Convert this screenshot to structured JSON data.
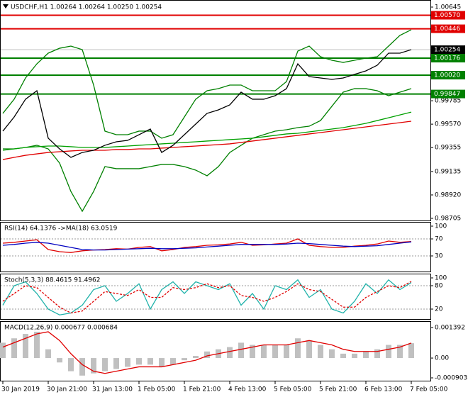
{
  "chart_data": [
    {
      "type": "line",
      "title": "USDCHF,H1  1.00264 1.00264 1.00250 1.00254",
      "categories": [
        "30 Jan 2019",
        null,
        null,
        null,
        "30 Jan 21:00",
        null,
        null,
        null,
        "31 Jan 13:00",
        null,
        null,
        null,
        "1 Feb 05:00",
        null,
        null,
        null,
        "1 Feb 21:00",
        null,
        null,
        null,
        "4 Feb 13:00",
        null,
        null,
        null,
        "5 Feb 05:00",
        null,
        null,
        null,
        "5 Feb 21:00",
        null,
        null,
        null,
        "6 Feb 13:00",
        null,
        null,
        null,
        "7 Feb 05:00"
      ],
      "ylim": [
        0.98705,
        1.00645
      ],
      "yticks": [
        1.00645,
        0.99785,
        {
          "value": 0.9957,
          "label": "0.99570"
        },
        0.99355,
        0.99135,
        {
          "value": 0.9892,
          "label": "0.98920"
        },
        0.98705
      ],
      "last_price": 1.00254,
      "levels": [
        {
          "value": 1.0057,
          "label": "1.00570",
          "color": "#e00000"
        },
        {
          "value": 1.00446,
          "label": "1.00446",
          "color": "#e00000"
        },
        {
          "value": 1.00176,
          "label": "1.00176",
          "color": "#008000"
        },
        {
          "value": 1.0002,
          "label": "1.00020",
          "color": "#008000"
        },
        {
          "value": 0.99847,
          "label": "0.99847",
          "color": "#008000"
        }
      ],
      "series": [
        {
          "color": "#008000",
          "values": [
            0.99669,
            0.99799,
            0.99994,
            1.00124,
            1.00222,
            1.00267,
            1.00287,
            1.00254,
            0.99929,
            0.99506,
            0.99473,
            0.99473,
            0.99506,
            0.99506,
            0.99441,
            0.99473,
            0.99636,
            0.99799,
            0.99877,
            0.99896,
            0.99929,
            0.99929,
            0.99877,
            0.99877,
            0.99877,
            0.99961,
            1.00241,
            1.00287,
            1.00189,
            1.00157,
            1.00137,
            1.00157,
            1.00176,
            1.00189,
            1.00287,
            1.00385,
            1.00437
          ]
        },
        {
          "color": "#008000",
          "values": [
            0.99343,
            0.99343,
            0.99356,
            0.99376,
            0.99343,
            0.99213,
            0.98952,
            0.9877,
            0.98952,
            0.9918,
            0.99161,
            0.99161,
            0.99161,
            0.9918,
            0.992,
            0.992,
            0.9918,
            0.99148,
            0.99096,
            0.9918,
            0.9931,
            0.99376,
            0.99441,
            0.99473,
            0.99506,
            0.99519,
            0.99538,
            0.99551,
            0.99603,
            0.99734,
            0.99864,
            0.99896,
            0.99896,
            0.99877,
            0.99831,
            0.99864,
            0.99896
          ]
        },
        {
          "color": "#00a000",
          "values": [
            0.9933,
            0.99343,
            0.99356,
            0.99363,
            0.99369,
            0.99369,
            0.99363,
            0.99356,
            0.99356,
            0.99356,
            0.99363,
            0.99369,
            0.99376,
            0.99382,
            0.99389,
            0.99395,
            0.99402,
            0.99408,
            0.99415,
            0.99421,
            0.99428,
            0.99434,
            0.99441,
            0.99454,
            0.99467,
            0.9948,
            0.99486,
            0.99499,
            0.99512,
            0.99525,
            0.99538,
            0.99558,
            0.99577,
            0.99603,
            0.99629,
            0.99655,
            0.99681
          ]
        },
        {
          "color": "#e00000",
          "values": [
            0.99245,
            0.99265,
            0.99284,
            0.99297,
            0.9931,
            0.99317,
            0.99324,
            0.9933,
            0.9933,
            0.9933,
            0.99337,
            0.99337,
            0.99343,
            0.99343,
            0.9935,
            0.99356,
            0.99363,
            0.99369,
            0.99376,
            0.99382,
            0.99389,
            0.99402,
            0.99415,
            0.99428,
            0.99441,
            0.99454,
            0.99467,
            0.9948,
            0.99493,
            0.99506,
            0.99519,
            0.99532,
            0.99545,
            0.99558,
            0.99571,
            0.99584,
            0.99597
          ]
        },
        {
          "color": "#000000",
          "values": [
            0.99506,
            0.99636,
            0.99799,
            0.99877,
            0.99441,
            0.99343,
            0.99265,
            0.9931,
            0.9933,
            0.99376,
            0.99408,
            0.99421,
            0.99473,
            0.99525,
            0.9931,
            0.99376,
            0.99473,
            0.99571,
            0.99669,
            0.99701,
            0.99747,
            0.99864,
            0.99799,
            0.99799,
            0.99831,
            0.99896,
            1.00124,
            1.00007,
            0.99994,
            0.99981,
            0.99994,
            1.00027,
            1.00059,
            1.00111,
            1.00222,
            1.00222,
            1.00254
          ]
        }
      ]
    },
    {
      "type": "line",
      "title": "RSI(14) 64.1376  ->MA(18) 63.0519",
      "ylim": [
        0,
        100
      ],
      "yticks": [
        100,
        70,
        30
      ],
      "series": [
        {
          "color": "#e00000",
          "values": [
            60,
            62,
            65,
            68,
            45,
            40,
            38,
            42,
            44,
            45,
            47,
            46,
            50,
            52,
            42,
            45,
            50,
            52,
            55,
            56,
            58,
            62,
            55,
            56,
            58,
            60,
            70,
            55,
            52,
            50,
            50,
            53,
            55,
            58,
            65,
            62,
            64
          ]
        },
        {
          "color": "#0000c0",
          "values": [
            55,
            57,
            60,
            62,
            60,
            55,
            50,
            45,
            44,
            44,
            45,
            46,
            47,
            48,
            47,
            47,
            48,
            49,
            51,
            53,
            55,
            57,
            57,
            57,
            57,
            58,
            60,
            59,
            57,
            55,
            53,
            52,
            53,
            54,
            57,
            60,
            63
          ]
        }
      ]
    },
    {
      "type": "line",
      "title": "Stoch(5,3,3) 88.4615 91.4962",
      "ylim": [
        0,
        100
      ],
      "yticks": [
        100,
        80,
        20
      ],
      "series": [
        {
          "color": "#20b2aa",
          "values": [
            30,
            80,
            90,
            60,
            20,
            5,
            10,
            30,
            70,
            80,
            40,
            60,
            85,
            20,
            70,
            90,
            60,
            90,
            80,
            70,
            85,
            30,
            60,
            20,
            80,
            70,
            95,
            50,
            70,
            20,
            10,
            40,
            85,
            60,
            95,
            70,
            88
          ]
        },
        {
          "color": "#e00000",
          "dashed": true,
          "values": [
            40,
            60,
            80,
            75,
            50,
            25,
            10,
            15,
            40,
            65,
            60,
            55,
            70,
            50,
            50,
            75,
            70,
            75,
            85,
            75,
            80,
            55,
            50,
            40,
            50,
            65,
            85,
            70,
            65,
            45,
            25,
            25,
            50,
            65,
            80,
            75,
            91
          ]
        }
      ]
    },
    {
      "type": "combo",
      "title": "MACD(12,26,9) 0.000677 0.000684",
      "ylim": [
        -0.000903,
        0.001392
      ],
      "yticks": [
        0.001392,
        {
          "value": 0,
          "label": "0.00"
        },
        -0.000903
      ],
      "series": [
        {
          "type": "bar",
          "color": "#c0c0c0",
          "values": [
            0.0007,
            0.0009,
            0.0011,
            0.0012,
            0.0004,
            -0.0002,
            -0.0006,
            -0.0008,
            -0.0007,
            -0.0006,
            -0.0005,
            -0.0004,
            -0.0003,
            -0.0003,
            -0.0004,
            -0.0003,
            -0.0001,
            0.0001,
            0.0003,
            0.0004,
            0.0005,
            0.0007,
            0.0006,
            0.0006,
            0.0006,
            0.0006,
            0.0009,
            0.0008,
            0.0006,
            0.0004,
            0.0002,
            0.0002,
            0.0003,
            0.0004,
            0.0006,
            0.0006,
            0.000677
          ]
        },
        {
          "type": "line",
          "color": "#e00000",
          "values": [
            0.0005,
            0.0007,
            0.0009,
            0.0011,
            0.0012,
            0.0008,
            0.0002,
            -0.0003,
            -0.0006,
            -0.0007,
            -0.0006,
            -0.0005,
            -0.0004,
            -0.0004,
            -0.0004,
            -0.0003,
            -0.0002,
            -0.0001,
            0.0001,
            0.0002,
            0.0003,
            0.0004,
            0.0005,
            0.0006,
            0.0006,
            0.0006,
            0.0007,
            0.0008,
            0.0007,
            0.0006,
            0.0004,
            0.0003,
            0.0003,
            0.0003,
            0.0004,
            0.0005,
            0.000684
          ]
        }
      ]
    }
  ]
}
